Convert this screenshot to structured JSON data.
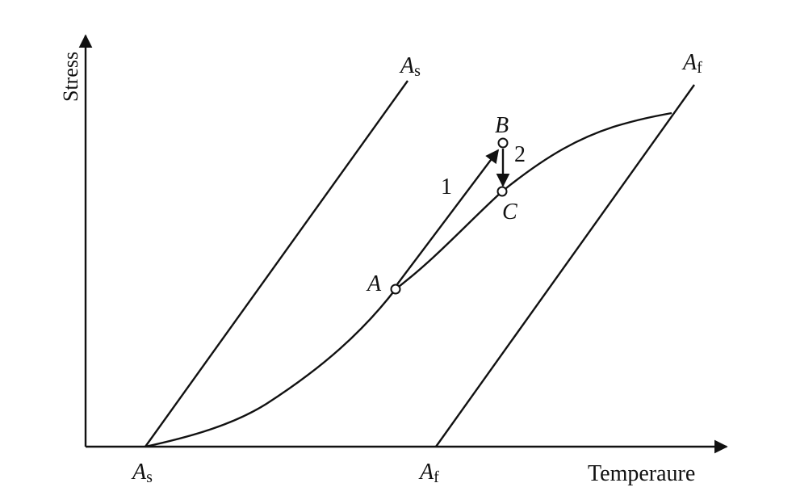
{
  "axes": {
    "y_label": "Stress",
    "x_label": "Temperaure"
  },
  "labels": {
    "as_x_axis": {
      "main": "A",
      "sub": "s"
    },
    "af_x_axis": {
      "main": "A",
      "sub": "f"
    },
    "as_line_top": {
      "main": "A",
      "sub": "s"
    },
    "af_line_top": {
      "main": "A",
      "sub": "f"
    },
    "point_a": "A",
    "point_b": "B",
    "point_c": "C",
    "path_1": "1",
    "path_2": "2"
  }
}
